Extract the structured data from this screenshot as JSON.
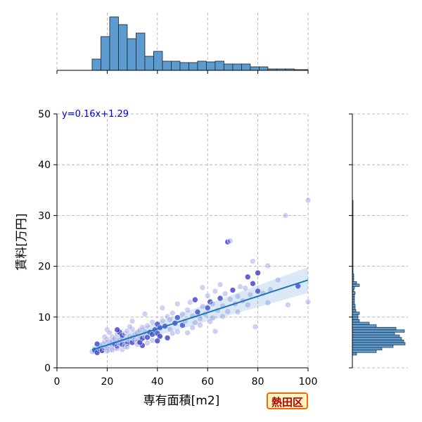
{
  "chart_data": {
    "type": "scatter",
    "xlabel": "専有面積[m2]",
    "ylabel": "賃料[万円]",
    "xlim": [
      0,
      100
    ],
    "ylim": [
      0,
      50
    ],
    "xticks": [
      0,
      20,
      40,
      60,
      80,
      100
    ],
    "yticks": [
      0,
      10,
      20,
      30,
      40,
      50
    ],
    "grid": true,
    "regression": {
      "label": "y=0.16x+1.29",
      "slope": 0.16,
      "intercept": 1.29,
      "x_range": [
        14,
        100
      ]
    },
    "badge": "熱田区",
    "points": [
      [
        14,
        3.2
      ],
      [
        15,
        3.5
      ],
      [
        16,
        3.0
      ],
      [
        17,
        3.8
      ],
      [
        17,
        4.2
      ],
      [
        18,
        3.4
      ],
      [
        18,
        4.6
      ],
      [
        19,
        3.9
      ],
      [
        19,
        5.2
      ],
      [
        20,
        4.1
      ],
      [
        20,
        5.6
      ],
      [
        20,
        7.5
      ],
      [
        21,
        3.6
      ],
      [
        21,
        4.8
      ],
      [
        21,
        6.9
      ],
      [
        22,
        4.4
      ],
      [
        22,
        5.3
      ],
      [
        22,
        6.1
      ],
      [
        23,
        3.9
      ],
      [
        23,
        4.7
      ],
      [
        23,
        5.8
      ],
      [
        24,
        4.3
      ],
      [
        24,
        5.1
      ],
      [
        24,
        6.6
      ],
      [
        25,
        4.9
      ],
      [
        25,
        5.5
      ],
      [
        25,
        7.0
      ],
      [
        26,
        4.6
      ],
      [
        26,
        5.9
      ],
      [
        26,
        6.4
      ],
      [
        27,
        5.2
      ],
      [
        27,
        6.8
      ],
      [
        28,
        4.8
      ],
      [
        28,
        5.7
      ],
      [
        28,
        7.3
      ],
      [
        29,
        5.4
      ],
      [
        29,
        6.2
      ],
      [
        30,
        5.0
      ],
      [
        30,
        6.0
      ],
      [
        30,
        7.6
      ],
      [
        31,
        5.6
      ],
      [
        31,
        6.5
      ],
      [
        32,
        5.2
      ],
      [
        32,
        6.9
      ],
      [
        33,
        6.1
      ],
      [
        33,
        7.4
      ],
      [
        34,
        5.8
      ],
      [
        34,
        8.0
      ],
      [
        35,
        6.4
      ],
      [
        35,
        7.1
      ],
      [
        36,
        6.0
      ],
      [
        36,
        8.3
      ],
      [
        37,
        7.0
      ],
      [
        38,
        6.6
      ],
      [
        38,
        9.0
      ],
      [
        39,
        7.5
      ],
      [
        40,
        6.8
      ],
      [
        40,
        8.6
      ],
      [
        41,
        7.9
      ],
      [
        42,
        9.3
      ],
      [
        42,
        11.8
      ],
      [
        43,
        8.2
      ],
      [
        44,
        10.1
      ],
      [
        45,
        7.6
      ],
      [
        45,
        9.5
      ],
      [
        46,
        10.8
      ],
      [
        47,
        8.8
      ],
      [
        48,
        9.9
      ],
      [
        48,
        12.6
      ],
      [
        50,
        8.4
      ],
      [
        50,
        10.6
      ],
      [
        51,
        9.2
      ],
      [
        52,
        11.4
      ],
      [
        53,
        12.9
      ],
      [
        54,
        10.2
      ],
      [
        55,
        8.9
      ],
      [
        55,
        13.4
      ],
      [
        56,
        11.0
      ],
      [
        57,
        9.7
      ],
      [
        58,
        12.1
      ],
      [
        58,
        15.8
      ],
      [
        59,
        10.6
      ],
      [
        60,
        11.8
      ],
      [
        60,
        14.2
      ],
      [
        61,
        13.0
      ],
      [
        62,
        9.8
      ],
      [
        62,
        12.6
      ],
      [
        63,
        15.1
      ],
      [
        64,
        11.3
      ],
      [
        65,
        13.7
      ],
      [
        65,
        16.4
      ],
      [
        66,
        12.2
      ],
      [
        67,
        14.6
      ],
      [
        68,
        24.8
      ],
      [
        68,
        11.1
      ],
      [
        69,
        13.5
      ],
      [
        69,
        25.0
      ],
      [
        70,
        15.3
      ],
      [
        71,
        12.6
      ],
      [
        72,
        14.1
      ],
      [
        73,
        16.0
      ],
      [
        74,
        13.2
      ],
      [
        75,
        15.7
      ],
      [
        76,
        17.9
      ],
      [
        77,
        14.4
      ],
      [
        78,
        16.6
      ],
      [
        78,
        21.0
      ],
      [
        79,
        8.1
      ],
      [
        80,
        15.1
      ],
      [
        80,
        18.7
      ],
      [
        82,
        14.7
      ],
      [
        84,
        20.1
      ],
      [
        85,
        15.4
      ],
      [
        88,
        17.3
      ],
      [
        91,
        30.0
      ],
      [
        92,
        12.4
      ],
      [
        96,
        16.1
      ],
      [
        100,
        13.0
      ],
      [
        100,
        33.0
      ],
      [
        44,
        5.9
      ],
      [
        46,
        6.8
      ],
      [
        36,
        4.9
      ],
      [
        26,
        3.6
      ],
      [
        32,
        4.6
      ],
      [
        24,
        7.5
      ],
      [
        29,
        8.1
      ],
      [
        38,
        5.4
      ],
      [
        41,
        6.2
      ],
      [
        52,
        6.9
      ],
      [
        57,
        8.4
      ],
      [
        63,
        7.2
      ],
      [
        35,
        10.6
      ],
      [
        30,
        9.2
      ],
      [
        19,
        6.1
      ],
      [
        16,
        4.7
      ],
      [
        22,
        3.5
      ],
      [
        27,
        4.2
      ],
      [
        34,
        4.4
      ],
      [
        40,
        5.3
      ],
      [
        48,
        7.1
      ],
      [
        54,
        7.9
      ],
      [
        61,
        9.1
      ],
      [
        66,
        10.1
      ],
      [
        72,
        11.0
      ],
      [
        76,
        12.4
      ],
      [
        84,
        12.8
      ],
      [
        20,
        3.3
      ],
      [
        24,
        3.8
      ],
      [
        28,
        4.1
      ],
      [
        33,
        5.0
      ]
    ],
    "x_histogram": {
      "bin_edges": [
        14,
        17.5,
        21,
        24.5,
        28,
        31.5,
        35,
        38.5,
        42,
        45.5,
        49,
        52.5,
        56,
        59.5,
        63,
        66.5,
        70,
        73.5,
        77,
        80.5,
        84,
        87.5,
        91,
        94.5,
        100
      ],
      "counts": [
        16,
        48,
        76,
        65,
        45,
        53,
        20,
        27,
        13,
        13,
        11,
        11,
        13,
        12,
        13,
        9,
        9,
        9,
        5,
        5,
        2,
        2,
        2,
        1
      ]
    },
    "y_histogram": {
      "bin_edges": [
        2.5,
        3,
        3.5,
        4,
        4.5,
        5,
        5.5,
        6,
        6.5,
        7,
        7.5,
        8,
        8.5,
        9,
        9.5,
        10,
        10.5,
        11,
        11.5,
        12,
        12.5,
        13,
        13.5,
        14,
        14.5,
        15,
        15.5,
        16,
        16.5,
        17,
        17.5,
        18,
        18.5,
        19,
        19.5,
        20,
        25,
        30,
        33
      ],
      "counts": [
        6,
        34,
        42,
        58,
        75,
        73,
        70,
        67,
        60,
        74,
        62,
        34,
        24,
        10,
        8,
        8,
        10,
        5,
        4,
        4,
        3,
        3,
        3,
        3,
        4,
        2,
        3,
        10,
        6,
        2,
        2,
        2,
        1,
        1,
        1,
        1,
        1,
        1
      ]
    }
  }
}
